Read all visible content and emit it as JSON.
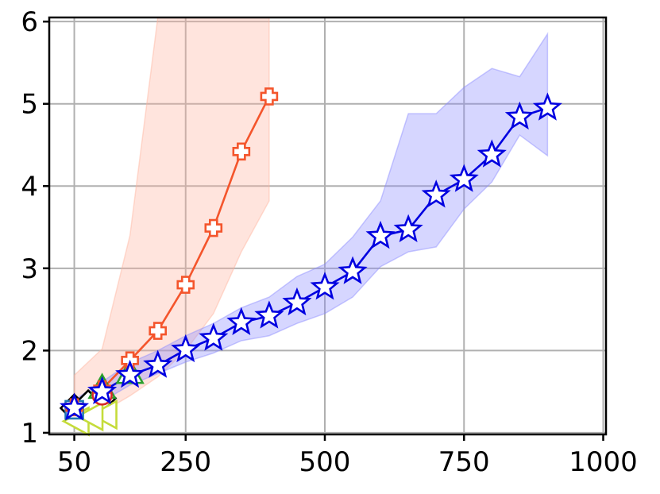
{
  "chart_data": {
    "type": "line",
    "title": "",
    "xlabel": "",
    "ylabel": "",
    "xlim": [
      5,
      1005
    ],
    "ylim": [
      0.98,
      6.05
    ],
    "grid": true,
    "x_ticks": [
      {
        "value": 50,
        "label": "50"
      },
      {
        "value": 250,
        "label": "250"
      },
      {
        "value": 500,
        "label": "500"
      },
      {
        "value": 750,
        "label": "750"
      },
      {
        "value": 1000,
        "label": "1000"
      }
    ],
    "y_ticks": [
      {
        "value": 1,
        "label": "1"
      },
      {
        "value": 2,
        "label": "2"
      },
      {
        "value": 3,
        "label": "3"
      },
      {
        "value": 4,
        "label": "4"
      },
      {
        "value": 5,
        "label": "5"
      },
      {
        "value": 6,
        "label": "6"
      }
    ],
    "series": [
      {
        "marker": "diamond",
        "color": "#000000",
        "fill": "#ffffff",
        "line": false,
        "x": [
          50,
          100,
          75
        ],
        "y": [
          1.3,
          1.42,
          1.35
        ]
      },
      {
        "marker": "triangle-left",
        "color": "#c5dc3a",
        "fill": "#ffffff",
        "line": false,
        "x": [
          55,
          105,
          80
        ],
        "y": [
          1.14,
          1.22,
          1.2
        ]
      },
      {
        "marker": "triangle-up",
        "color": "#2ca02c",
        "fill": "#ffffff",
        "line": false,
        "x": [
          100,
          150
        ],
        "y": [
          1.55,
          1.73
        ]
      },
      {
        "marker": "square",
        "color": "#1f77b4",
        "fill": "#ffffff",
        "line": false,
        "x": [
          50
        ],
        "y": [
          1.28
        ]
      },
      {
        "marker": "circle",
        "color": "#d62728",
        "fill": "#ffffff",
        "line": false,
        "x": [
          100
        ],
        "y": [
          1.46
        ]
      },
      {
        "marker": "plus",
        "color": "#f4552c",
        "fill": "#ffffff",
        "line": true,
        "band_color": "#ffb39e",
        "x": [
          50,
          100,
          150,
          200,
          250,
          300,
          350,
          400
        ],
        "y": [
          1.31,
          1.53,
          1.88,
          2.24,
          2.8,
          3.49,
          4.42,
          5.09
        ],
        "band_x": [
          50,
          100,
          150,
          200,
          250,
          300,
          350,
          400
        ],
        "band_low": [
          1.18,
          1.25,
          1.45,
          1.68,
          2.0,
          2.45,
          3.2,
          3.82
        ],
        "band_high": [
          1.7,
          2.02,
          3.4,
          6.05,
          6.05,
          6.05,
          6.05,
          6.05
        ]
      },
      {
        "marker": "star",
        "color": "#0000e0",
        "fill": "#ffffff",
        "line": true,
        "band_color": "#8a8aff",
        "x": [
          50,
          100,
          150,
          200,
          250,
          300,
          350,
          400,
          450,
          500,
          550,
          600,
          650,
          700,
          750,
          800,
          850,
          900
        ],
        "y": [
          1.3,
          1.5,
          1.7,
          1.82,
          2.01,
          2.15,
          2.34,
          2.42,
          2.58,
          2.77,
          2.96,
          3.39,
          3.47,
          3.89,
          4.08,
          4.38,
          4.84,
          4.95
        ],
        "band_x": [
          50,
          100,
          150,
          200,
          250,
          300,
          350,
          400,
          450,
          500,
          550,
          600,
          650,
          700,
          750,
          800,
          850,
          900
        ],
        "band_low": [
          1.2,
          1.38,
          1.58,
          1.72,
          1.86,
          1.97,
          2.12,
          2.18,
          2.33,
          2.45,
          2.65,
          3.02,
          3.2,
          3.26,
          3.72,
          4.05,
          4.62,
          4.37
        ],
        "band_high": [
          1.4,
          1.62,
          1.85,
          2.0,
          2.18,
          2.33,
          2.52,
          2.65,
          2.9,
          3.05,
          3.38,
          3.82,
          4.88,
          4.88,
          5.2,
          5.43,
          5.33,
          5.85
        ]
      }
    ]
  }
}
